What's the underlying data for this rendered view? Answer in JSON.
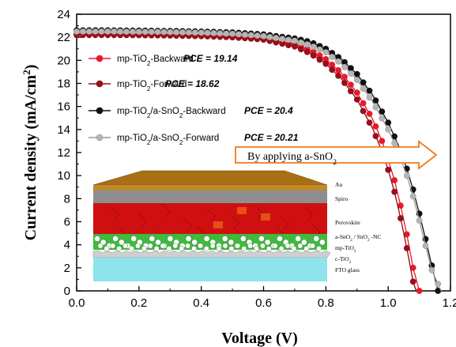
{
  "chart_data": {
    "type": "line",
    "xlabel": "Voltage (V)",
    "ylabel": "Current density (mA/cm",
    "ylabel_sup": "2",
    "ylabel_tail": ")",
    "xlim": [
      0.0,
      1.2
    ],
    "ylim": [
      0,
      24
    ],
    "x_ticks": [
      0.0,
      0.2,
      0.4,
      0.6,
      0.8,
      1.0,
      1.2
    ],
    "x_tick_labels": [
      "0.0",
      "0.2",
      "0.4",
      "0.6",
      "0.8",
      "1.0",
      "1.2"
    ],
    "y_ticks": [
      0,
      2,
      4,
      6,
      8,
      10,
      12,
      14,
      16,
      18,
      20,
      22,
      24
    ],
    "y_tick_labels": [
      "0",
      "2",
      "4",
      "6",
      "8",
      "10",
      "12",
      "14",
      "16",
      "18",
      "20",
      "22",
      "24"
    ],
    "grid": false,
    "legend_position": "upper-left",
    "series": [
      {
        "legend": {
          "pre": "mp-TiO",
          "sub": "2",
          "mid": "",
          "sub2": "",
          "post": "-Backward"
        },
        "pce": "PCE = 19.14",
        "color": "#e8192c",
        "marker_fill": "#e8192c",
        "points": [
          [
            0.0,
            22.3
          ],
          [
            0.1,
            22.3
          ],
          [
            0.2,
            22.28
          ],
          [
            0.3,
            22.25
          ],
          [
            0.4,
            22.2
          ],
          [
            0.5,
            22.1
          ],
          [
            0.6,
            21.9
          ],
          [
            0.7,
            21.4
          ],
          [
            0.75,
            20.9
          ],
          [
            0.8,
            20.1
          ],
          [
            0.85,
            18.9
          ],
          [
            0.9,
            17.2
          ],
          [
            0.95,
            14.9
          ],
          [
            0.98,
            13.0
          ],
          [
            1.0,
            11.4
          ],
          [
            1.02,
            9.6
          ],
          [
            1.04,
            7.4
          ],
          [
            1.06,
            4.9
          ],
          [
            1.08,
            2.0
          ],
          [
            1.1,
            0.0
          ]
        ]
      },
      {
        "legend": {
          "pre": "mp-TiO",
          "sub": "2",
          "mid": "",
          "sub2": "",
          "post": "-Forward"
        },
        "pce": "PCE = 18.62",
        "color": "#8b0a14",
        "marker_fill": "#9a0f1b",
        "points": [
          [
            0.0,
            22.2
          ],
          [
            0.1,
            22.2
          ],
          [
            0.2,
            22.18
          ],
          [
            0.3,
            22.15
          ],
          [
            0.4,
            22.1
          ],
          [
            0.5,
            22.0
          ],
          [
            0.6,
            21.8
          ],
          [
            0.7,
            21.2
          ],
          [
            0.75,
            20.6
          ],
          [
            0.8,
            19.7
          ],
          [
            0.85,
            18.4
          ],
          [
            0.9,
            16.6
          ],
          [
            0.95,
            14.1
          ],
          [
            0.98,
            12.1
          ],
          [
            1.0,
            10.5
          ],
          [
            1.02,
            8.6
          ],
          [
            1.04,
            6.3
          ],
          [
            1.06,
            3.7
          ],
          [
            1.08,
            0.8
          ],
          [
            1.09,
            0.0
          ]
        ]
      },
      {
        "legend": {
          "pre": "mp-TiO",
          "sub": "2",
          "mid": "/a-SnO",
          "sub2": "2",
          "post": "-Backward"
        },
        "pce": "PCE = 20.4",
        "color": "#111111",
        "marker_fill": "#111111",
        "points": [
          [
            0.0,
            22.6
          ],
          [
            0.1,
            22.6
          ],
          [
            0.2,
            22.58
          ],
          [
            0.3,
            22.55
          ],
          [
            0.4,
            22.5
          ],
          [
            0.5,
            22.42
          ],
          [
            0.6,
            22.25
          ],
          [
            0.7,
            21.9
          ],
          [
            0.75,
            21.6
          ],
          [
            0.8,
            21.0
          ],
          [
            0.85,
            20.1
          ],
          [
            0.9,
            18.8
          ],
          [
            0.95,
            17.0
          ],
          [
            1.0,
            14.6
          ],
          [
            1.03,
            12.8
          ],
          [
            1.06,
            10.6
          ],
          [
            1.08,
            8.8
          ],
          [
            1.1,
            6.7
          ],
          [
            1.12,
            4.5
          ],
          [
            1.14,
            2.2
          ],
          [
            1.16,
            0.0
          ]
        ]
      },
      {
        "legend": {
          "pre": "mp-TiO",
          "sub": "2",
          "mid": "/a-SnO",
          "sub2": "2",
          "post": "-Forward"
        },
        "pce": "PCE = 20.21",
        "color": "#9a9a9a",
        "marker_fill": "#b5b5b5",
        "points": [
          [
            0.0,
            22.5
          ],
          [
            0.1,
            22.5
          ],
          [
            0.2,
            22.48
          ],
          [
            0.3,
            22.45
          ],
          [
            0.4,
            22.4
          ],
          [
            0.5,
            22.3
          ],
          [
            0.6,
            22.1
          ],
          [
            0.7,
            21.7
          ],
          [
            0.75,
            21.3
          ],
          [
            0.8,
            20.7
          ],
          [
            0.85,
            19.7
          ],
          [
            0.9,
            18.3
          ],
          [
            0.95,
            16.4
          ],
          [
            1.0,
            14.0
          ],
          [
            1.03,
            12.2
          ],
          [
            1.06,
            10.0
          ],
          [
            1.08,
            8.2
          ],
          [
            1.1,
            6.1
          ],
          [
            1.12,
            3.9
          ],
          [
            1.14,
            1.8
          ],
          [
            1.17,
            0.0
          ]
        ]
      }
    ],
    "annotation": {
      "pre": "By applying a-SnO",
      "sub": "2"
    },
    "inset": {
      "layers": [
        {
          "label": "Au",
          "color": "#c08a2b"
        },
        {
          "label": "Spiro",
          "color": "#8e8e8e"
        },
        {
          "label": "Perovskite",
          "color": "#d01010"
        },
        {
          "label_pre": "a-SnO",
          "label_sub": "2",
          "label_mid": " / SnO",
          "label_sub2": "2",
          "label_post": " -NC",
          "color": "#3dbb3d"
        },
        {
          "label_pre": "mp-TiO",
          "label_sub": "2",
          "color": "#ffffff"
        },
        {
          "label_pre": "c-TiO",
          "label_sub": "2",
          "color": "#cfcfcf"
        },
        {
          "label": "FTO glass",
          "color": "#8ee4ea"
        }
      ]
    }
  }
}
